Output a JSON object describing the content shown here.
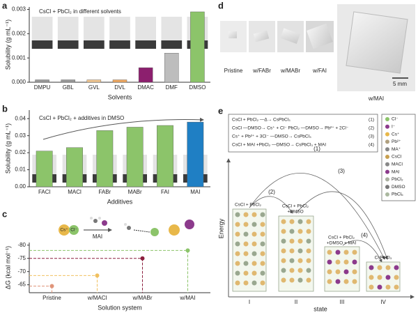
{
  "chart_data": [
    {
      "type": "bar",
      "title": "CsCl + PbCl₂ in different solvents",
      "y_label": "Solubility (g mL⁻¹)",
      "x_label": "Solvents",
      "categories": [
        "DMPU",
        "GBL",
        "GVL",
        "DVL",
        "DMAC",
        "DMF",
        "DMSO"
      ],
      "values": [
        0.0001,
        0.0001,
        0.0001,
        0.0001,
        0.0006,
        0.0012,
        0.0029
      ],
      "colors": [
        "#9a9a9a",
        "#9a9a9a",
        "#f2c690",
        "#f0a860",
        "#8c1f6e",
        "#bdbdbd",
        "#8cc46a"
      ],
      "ylim": [
        0,
        0.0031
      ],
      "yticks": [
        {
          "value": 0,
          "label": "0.000"
        },
        {
          "value": 0.001,
          "label": "0.001"
        },
        {
          "value": 0.002,
          "label": "0.002"
        },
        {
          "value": 0.003,
          "label": "0.003"
        }
      ]
    },
    {
      "type": "bar",
      "title": "CsCl + PbCl₂ + additives in DMSO",
      "y_label": "Solubility (g mL⁻¹)",
      "x_label": "Additives",
      "categories": [
        "FACl",
        "MACl",
        "FABr",
        "MABr",
        "FAI",
        "MAI"
      ],
      "values": [
        0.021,
        0.023,
        0.033,
        0.035,
        0.036,
        0.038
      ],
      "colors": [
        "#8cc46a",
        "#8cc46a",
        "#8cc46a",
        "#8cc46a",
        "#8cc46a",
        "#1f7fc4"
      ],
      "ylim": [
        0,
        0.045
      ],
      "yticks": [
        {
          "value": 0,
          "label": "0.00"
        },
        {
          "value": 0.01,
          "label": "0.01"
        },
        {
          "value": 0.02,
          "label": "0.02"
        },
        {
          "value": 0.03,
          "label": "0.03"
        },
        {
          "value": 0.04,
          "label": "0.04"
        }
      ]
    },
    {
      "type": "dot",
      "y_label": "ΔG (kcal mol⁻¹)",
      "x_label": "Solution system",
      "categories": [
        "Pristine",
        "w/MACl",
        "w/MABr",
        "w/MAI"
      ],
      "values": [
        -64.5,
        -68.5,
        -75,
        -78
      ],
      "colors": [
        "#e0957a",
        "#f0c060",
        "#8c1f3e",
        "#8cc46a"
      ],
      "ylim": [
        -62,
        -81
      ],
      "yticks": [
        -65,
        -70,
        -75,
        -80
      ],
      "annotations": [
        "MAI",
        "Cs⁺",
        "Cl⁻"
      ]
    }
  ],
  "panel_labels": [
    "a",
    "b",
    "c",
    "d",
    "e"
  ],
  "panel_d": {
    "labels": [
      "Pristine",
      "w/FABr",
      "w/MABr",
      "w/FAI",
      "w/MAI"
    ],
    "scale_bar": "5 mm"
  },
  "panel_e": {
    "equations": [
      {
        "text": "CsCl + PbCl₂ —Δ→ CsPbCl₃",
        "num": "(1)"
      },
      {
        "text": "CsCl —DMSO→ Cs⁺ + Cl⁻   PbCl₂ —DMSO→ Pb²⁺ + 2Cl⁻",
        "num": "(2)"
      },
      {
        "text": "Cs⁺ + Pb²⁺ + 3Cl⁻ —DMSO→ CsPbCl₃",
        "num": "(3)"
      },
      {
        "text": "CsCl + MAI +PbCl₂ —DMSO→ CsPbCl₃ + MAI",
        "num": "(4)"
      }
    ],
    "legend": [
      "Cl⁻",
      "I⁻",
      "Cs⁺",
      "Pb²⁺",
      "MA⁺",
      "CsCl",
      "MACl",
      "MAI",
      "PbCl₂",
      "DMSO",
      "PbCl₆"
    ],
    "box_labels": [
      "CsCl + PbCl₂",
      "CsCl + PbCl₂",
      "+DMSO",
      "CsCl + PbCl₂",
      "+DMSO + MAI",
      "CsPbCl₃"
    ],
    "states": [
      "I",
      "II",
      "III",
      "IV"
    ],
    "arrow_labels": [
      "(1)",
      "(2)",
      "(3)",
      "(4)"
    ],
    "y_label": "Energy",
    "x_label": "state"
  }
}
